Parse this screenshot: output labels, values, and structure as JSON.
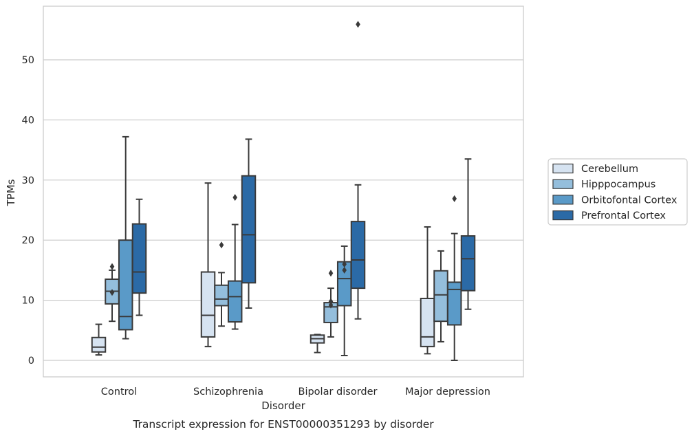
{
  "chart_data": {
    "type": "box",
    "title": "",
    "caption": "Transcript expression for ENST00000351293 by disorder",
    "xlabel": "Disorder",
    "ylabel": "TPMs",
    "ylim": [
      -2.7,
      58.8
    ],
    "yticks": [
      0,
      10,
      20,
      30,
      40,
      50
    ],
    "grid": "horizontal",
    "legend_position": "right",
    "categories": [
      "Control",
      "Schizophrenia",
      "Bipolar disorder",
      "Major depression"
    ],
    "series": [
      {
        "name": "Cerebellum",
        "color": "#d6e3f1",
        "boxes": [
          {
            "whislo": 0.9,
            "q1": 1.4,
            "med": 2.2,
            "q3": 3.8,
            "whishi": 6.0,
            "fliers": []
          },
          {
            "whislo": 2.3,
            "q1": 3.9,
            "med": 7.5,
            "q3": 14.7,
            "whishi": 29.5,
            "fliers": []
          },
          {
            "whislo": 1.3,
            "q1": 2.9,
            "med": 3.6,
            "q3": 4.2,
            "whishi": 4.3,
            "fliers": []
          },
          {
            "whislo": 1.1,
            "q1": 2.3,
            "med": 3.9,
            "q3": 10.3,
            "whishi": 22.2,
            "fliers": []
          }
        ]
      },
      {
        "name": "Hipppocampus",
        "color": "#94bedc",
        "boxes": [
          {
            "whislo": 6.5,
            "q1": 9.4,
            "med": 11.5,
            "q3": 13.5,
            "whishi": 15.0,
            "fliers": [
              15.6,
              11.3
            ]
          },
          {
            "whislo": 5.7,
            "q1": 9.1,
            "med": 10.2,
            "q3": 12.5,
            "whishi": 14.6,
            "fliers": [
              19.2
            ]
          },
          {
            "whislo": 3.9,
            "q1": 6.3,
            "med": 8.9,
            "q3": 9.6,
            "whishi": 12.0,
            "fliers": [
              14.5,
              9.8,
              9.2
            ]
          },
          {
            "whislo": 3.1,
            "q1": 6.5,
            "med": 10.9,
            "q3": 14.9,
            "whishi": 18.2,
            "fliers": []
          }
        ]
      },
      {
        "name": "Orbitofontal Cortex",
        "color": "#5a9ac8",
        "boxes": [
          {
            "whislo": 3.6,
            "q1": 5.1,
            "med": 7.3,
            "q3": 20.0,
            "whishi": 37.2,
            "fliers": []
          },
          {
            "whislo": 5.2,
            "q1": 6.4,
            "med": 10.6,
            "q3": 13.2,
            "whishi": 22.6,
            "fliers": [
              27.1
            ]
          },
          {
            "whislo": 0.8,
            "q1": 9.1,
            "med": 13.6,
            "q3": 16.4,
            "whishi": 19.0,
            "fliers": [
              16.0,
              15.0
            ]
          },
          {
            "whislo": 0.0,
            "q1": 5.9,
            "med": 11.8,
            "q3": 13.0,
            "whishi": 21.1,
            "fliers": [
              26.9
            ]
          }
        ]
      },
      {
        "name": "Prefrontal Cortex",
        "color": "#2b6aa6",
        "boxes": [
          {
            "whislo": 7.5,
            "q1": 11.2,
            "med": 14.7,
            "q3": 22.7,
            "whishi": 26.8,
            "fliers": []
          },
          {
            "whislo": 8.7,
            "q1": 12.9,
            "med": 20.9,
            "q3": 30.7,
            "whishi": 36.8,
            "fliers": []
          },
          {
            "whislo": 6.9,
            "q1": 12.0,
            "med": 16.7,
            "q3": 23.1,
            "whishi": 29.2,
            "fliers": [
              55.9
            ]
          },
          {
            "whislo": 8.5,
            "q1": 11.6,
            "med": 16.9,
            "q3": 20.7,
            "whishi": 33.5,
            "fliers": []
          }
        ]
      }
    ]
  }
}
